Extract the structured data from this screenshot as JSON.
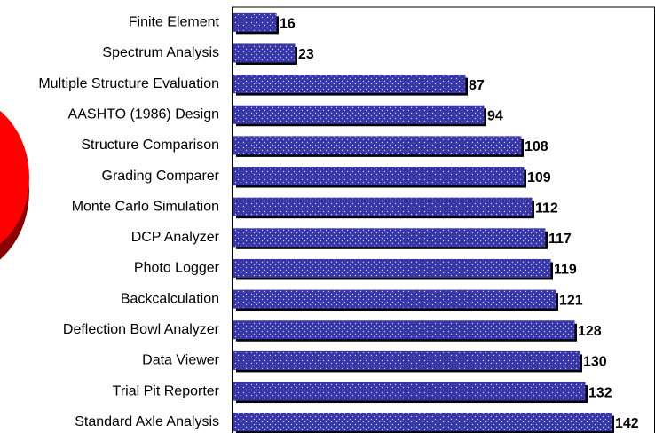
{
  "chart_data": {
    "type": "bar",
    "orientation": "horizontal",
    "categories": [
      "Finite Element",
      "Spectrum Analysis",
      "Multiple Structure Evaluation",
      "AASHTO (1986) Design",
      "Structure Comparison",
      "Grading Comparer",
      "Monte Carlo Simulation",
      "DCP Analyzer",
      "Photo Logger",
      "Backcalculation",
      "Deflection Bowl Analyzer",
      "Data Viewer",
      "Trial Pit Reporter",
      "Standard Axle Analysis"
    ],
    "values": [
      16,
      23,
      87,
      94,
      108,
      109,
      112,
      117,
      119,
      121,
      128,
      130,
      132,
      142
    ],
    "color": "#3636a8",
    "xlim": [
      0,
      158
    ]
  }
}
